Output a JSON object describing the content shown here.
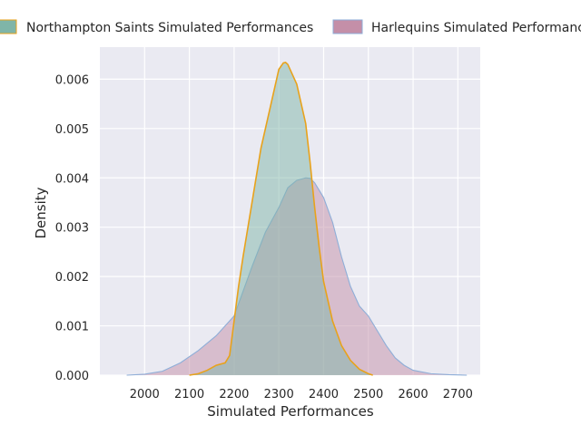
{
  "chart_data": {
    "type": "area",
    "xlabel": "Simulated Performances",
    "ylabel": "Density",
    "xlim": [
      1900,
      2750
    ],
    "ylim": [
      0,
      0.00665
    ],
    "x_ticks": [
      2000,
      2100,
      2200,
      2300,
      2400,
      2500,
      2600,
      2700
    ],
    "y_ticks": [
      0.0,
      0.001,
      0.002,
      0.003,
      0.004,
      0.005,
      0.006
    ],
    "y_tick_labels": [
      "0.000",
      "0.001",
      "0.002",
      "0.003",
      "0.004",
      "0.005",
      "0.006"
    ],
    "grid": true,
    "legend_position": "top",
    "series": [
      {
        "name": "Northampton Saints Simulated Performances",
        "fill": "#7fb5a8",
        "stroke": "#e8a21b",
        "x": [
          2100,
          2120,
          2140,
          2160,
          2180,
          2190,
          2200,
          2210,
          2220,
          2240,
          2260,
          2280,
          2300,
          2310,
          2315,
          2320,
          2340,
          2360,
          2370,
          2380,
          2390,
          2400,
          2420,
          2440,
          2460,
          2480,
          2500,
          2510
        ],
        "y": [
          0.0,
          3e-05,
          0.0001,
          0.0002,
          0.00025,
          0.0004,
          0.0011,
          0.0018,
          0.0024,
          0.0035,
          0.0046,
          0.0054,
          0.0062,
          0.00633,
          0.00634,
          0.0063,
          0.0059,
          0.0051,
          0.0043,
          0.0034,
          0.0026,
          0.0019,
          0.0011,
          0.0006,
          0.0003,
          0.00012,
          3e-05,
          0.0
        ]
      },
      {
        "name": "Harlequins Simulated Performances",
        "fill": "#c48fa8",
        "stroke": "#8eaed8",
        "x": [
          1960,
          2000,
          2040,
          2080,
          2120,
          2160,
          2200,
          2240,
          2270,
          2300,
          2320,
          2340,
          2360,
          2370,
          2380,
          2400,
          2420,
          2440,
          2460,
          2480,
          2500,
          2520,
          2540,
          2560,
          2580,
          2600,
          2640,
          2680,
          2720
        ],
        "y": [
          0.0,
          2e-05,
          8e-05,
          0.00025,
          0.0005,
          0.0008,
          0.0012,
          0.0022,
          0.0029,
          0.0034,
          0.0038,
          0.00395,
          0.004,
          0.00399,
          0.0039,
          0.0036,
          0.0031,
          0.0024,
          0.0018,
          0.0014,
          0.0012,
          0.0009,
          0.0006,
          0.00035,
          0.0002,
          0.0001,
          3e-05,
          1e-05,
          0.0
        ]
      }
    ]
  }
}
